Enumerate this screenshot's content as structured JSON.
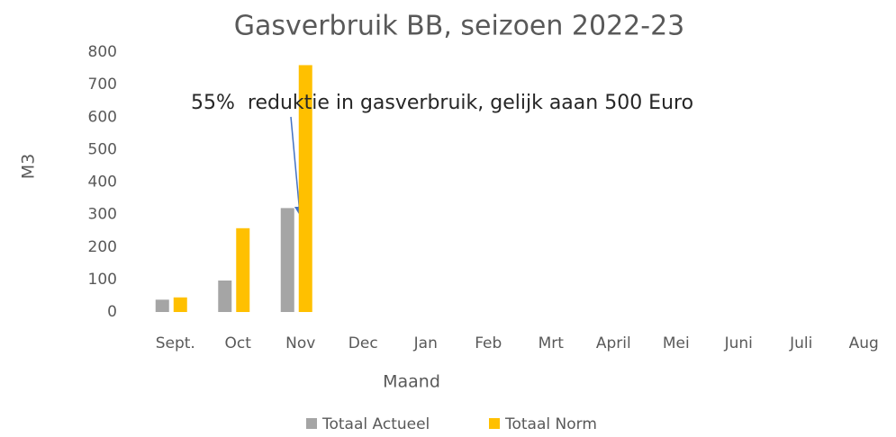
{
  "chart_data": {
    "type": "bar",
    "title": "Gasverbruik BB, seizoen 2022-23",
    "x_label": "Maand",
    "y_label": "M3",
    "annotation": "55%  reduktie in gasverbruik, gelijk aaan 500 Euro",
    "categories": [
      "Sept.",
      "Oct",
      "Nov",
      "Dec",
      "Jan",
      "Feb",
      "Mrt",
      "April",
      "Mei",
      "Juni",
      "Juli",
      "Aug"
    ],
    "series": [
      {
        "name": "Totaal Actueel",
        "color": "#a5a5a5",
        "values": [
          38,
          97,
          320,
          null,
          null,
          null,
          null,
          null,
          null,
          null,
          null,
          null
        ]
      },
      {
        "name": "Totaal Norm",
        "color": "#ffc000",
        "values": [
          45,
          258,
          760,
          null,
          null,
          null,
          null,
          null,
          null,
          null,
          null,
          null
        ]
      }
    ],
    "ylim": [
      0,
      800
    ],
    "yticks": [
      0,
      100,
      200,
      300,
      400,
      500,
      600,
      700,
      800
    ],
    "grid": false,
    "legend": "bottom"
  }
}
